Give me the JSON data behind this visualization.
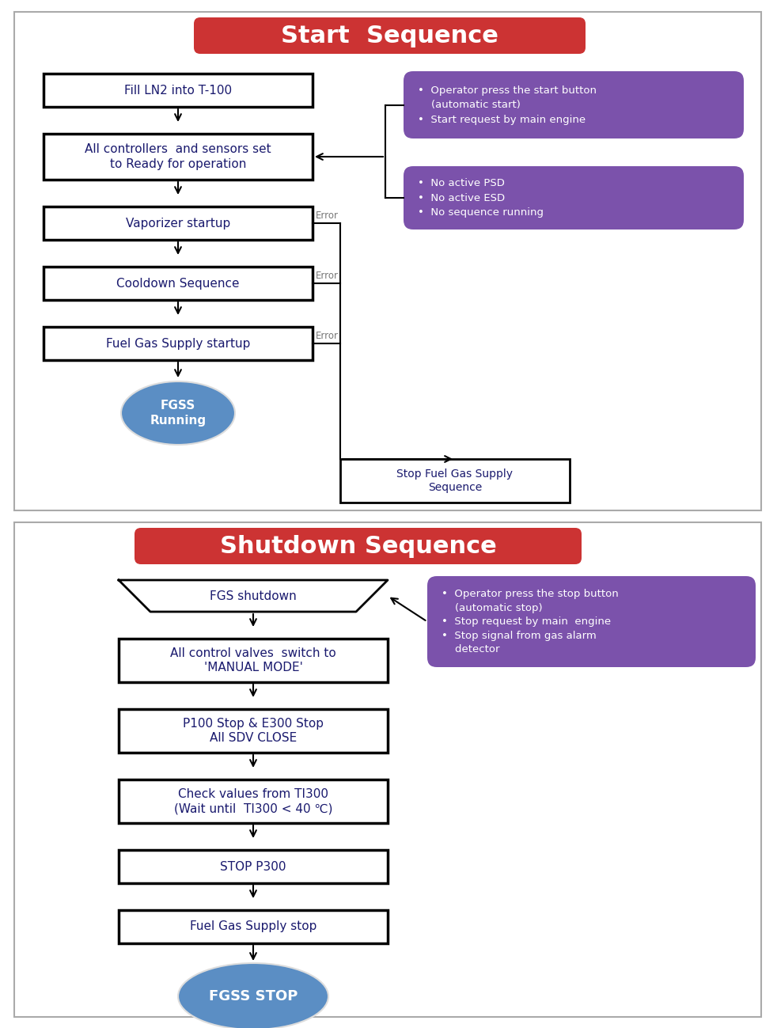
{
  "fig_width": 9.82,
  "fig_height": 12.99,
  "dpi": 100,
  "bg_color": "#ffffff",
  "title_bg_color": "#cc3333",
  "purple_box_color": "#7b52ab",
  "ellipse_color": "#5b8ec4",
  "box_text_color": "#1a1a6e",
  "error_text_color": "#777777",
  "start_title": "Start  Sequence",
  "shutdown_title": "Shutdown Sequence",
  "start_boxes": [
    "Fill LN2 into T-100",
    "All controllers  and sensors set\nto Ready for operation",
    "Vaporizer startup",
    "Cooldown Sequence",
    "Fuel Gas Supply startup"
  ],
  "start_ellipse": "FGSS\nRunning",
  "stop_box": "Stop Fuel Gas Supply\nSequence",
  "purple_box1_text": "•  Operator press the start button\n    (automatic start)\n•  Start request by main engine",
  "purple_box2_text": "•  No active PSD\n•  No active ESD\n•  No sequence running",
  "shutdown_boxes": [
    "All control valves  switch to\n'MANUAL MODE'",
    "P100 Stop & E300 Stop\nAll SDV CLOSE",
    "Check values from TI300\n(Wait until  TI300 < 40 ℃)",
    "STOP P300",
    "Fuel Gas Supply stop"
  ],
  "shutdown_ellipse": "FGSS STOP",
  "fgs_shutdown_text": "FGS shutdown",
  "purple_box3_text": "•  Operator press the stop button\n    (automatic stop)\n•  Stop request by main  engine\n•  Stop signal from gas alarm\n    detector"
}
